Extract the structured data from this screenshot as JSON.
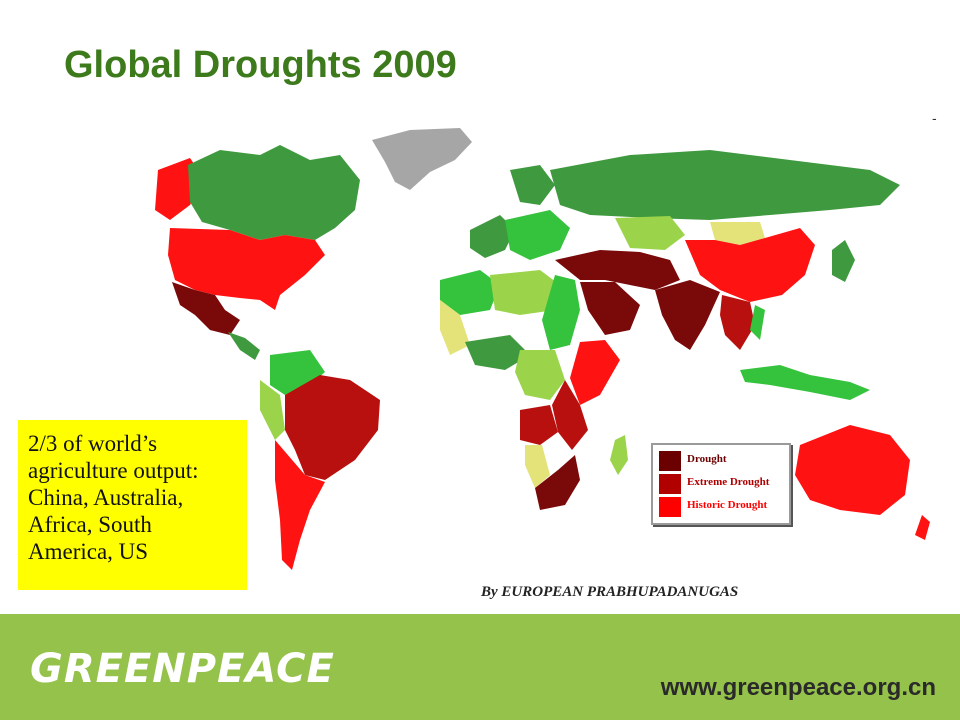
{
  "slide": {
    "title": "Global Droughts 2009",
    "dash": "-",
    "note": "2/3 of world’s agriculture output: China, Australia, Africa, South America, US",
    "credit": "By EUROPEAN PRABHUPADANUGAS"
  },
  "legend": {
    "items": [
      {
        "label": "Drought",
        "color": "#6b0000"
      },
      {
        "label": "Extreme Drought",
        "color": "#b00000"
      },
      {
        "label": "Historic Drought",
        "color": "#ff0000"
      }
    ]
  },
  "map_colors": {
    "historic": "#ff1212",
    "extreme": "#b80f0f",
    "drought": "#7a0a0a",
    "green_dark": "#3f9a3f",
    "green_mid": "#35c23d",
    "green_light": "#9bd44a",
    "yellow": "#e3e37a",
    "grey": "#a6a6a6"
  },
  "footer": {
    "logo": "GREENPEACE",
    "url": "www.greenpeace.org.cn",
    "background": "#95c24b"
  }
}
